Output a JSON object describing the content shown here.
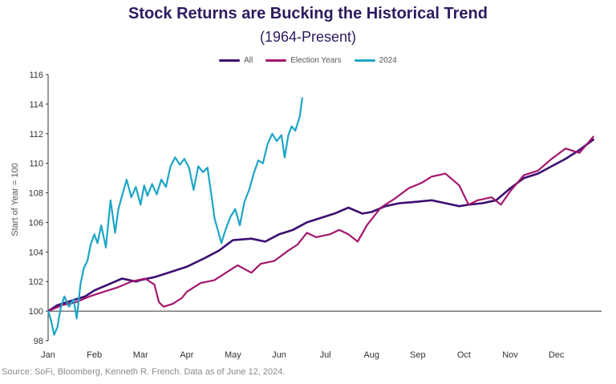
{
  "header": {
    "title": "Stock Returns are Bucking the Historical Trend",
    "subtitle": "(1964-Present)"
  },
  "source": "Source: SoFi, Bloomberg, Kenneth R. French. Data as of June 12, 2024.",
  "colors": {
    "all": "#3b0f70",
    "election": "#a3166e",
    "y2024": "#1ea5c6",
    "axis": "#333333"
  },
  "chart_data": {
    "type": "line",
    "title": "Stock Returns are Bucking the Historical Trend",
    "subtitle": "(1964-Present)",
    "xlabel": "",
    "ylabel": "Start of Year = 100",
    "categories": [
      "Jan",
      "Feb",
      "Mar",
      "Apr",
      "May",
      "Jun",
      "Jul",
      "Aug",
      "Sep",
      "Oct",
      "Nov",
      "Dec"
    ],
    "ylim": [
      98,
      116
    ],
    "yticks": [
      98,
      100,
      102,
      104,
      106,
      108,
      110,
      112,
      114,
      116
    ],
    "grid": false,
    "legend": "top-center",
    "series": [
      {
        "name": "All",
        "color": "#3b0f70",
        "x": [
          0,
          0.2,
          0.5,
          0.8,
          1.0,
          1.3,
          1.6,
          1.9,
          2.0,
          2.3,
          2.6,
          3.0,
          3.4,
          3.7,
          4.0,
          4.4,
          4.7,
          5.0,
          5.3,
          5.6,
          5.9,
          6.2,
          6.5,
          6.8,
          7.0,
          7.3,
          7.6,
          8.0,
          8.3,
          8.6,
          8.9,
          9.1,
          9.4,
          9.7,
          10.0,
          10.3,
          10.6,
          10.9,
          11.2,
          11.5,
          11.8
        ],
        "y": [
          100,
          100.4,
          100.7,
          101.0,
          101.4,
          101.8,
          102.2,
          102.0,
          102.1,
          102.3,
          102.6,
          103.0,
          103.6,
          104.1,
          104.8,
          104.9,
          104.7,
          105.2,
          105.5,
          106.0,
          106.3,
          106.6,
          107.0,
          106.6,
          106.7,
          107.1,
          107.3,
          107.4,
          107.5,
          107.3,
          107.1,
          107.2,
          107.3,
          107.5,
          108.3,
          109.0,
          109.3,
          109.8,
          110.3,
          110.9,
          111.6
        ]
      },
      {
        "name": "Election Years",
        "color": "#a3166e",
        "x": [
          0,
          0.3,
          0.6,
          0.9,
          1.2,
          1.5,
          1.8,
          2.1,
          2.3,
          2.4,
          2.5,
          2.7,
          2.9,
          3.0,
          3.3,
          3.6,
          3.9,
          4.1,
          4.4,
          4.6,
          4.9,
          5.2,
          5.4,
          5.6,
          5.8,
          6.1,
          6.3,
          6.5,
          6.7,
          6.9,
          7.2,
          7.5,
          7.8,
          8.1,
          8.3,
          8.6,
          8.9,
          9.1,
          9.3,
          9.6,
          9.8,
          10.0,
          10.3,
          10.6,
          10.9,
          11.2,
          11.5,
          11.8
        ],
        "y": [
          100,
          100.4,
          100.6,
          101.0,
          101.3,
          101.6,
          102.0,
          102.2,
          101.8,
          100.6,
          100.3,
          100.5,
          100.9,
          101.3,
          101.9,
          102.1,
          102.7,
          103.1,
          102.6,
          103.2,
          103.4,
          104.1,
          104.5,
          105.3,
          105.0,
          105.2,
          105.5,
          105.2,
          104.7,
          105.8,
          107.0,
          107.6,
          108.3,
          108.7,
          109.1,
          109.3,
          108.5,
          107.2,
          107.5,
          107.7,
          107.2,
          108.1,
          109.2,
          109.5,
          110.3,
          111.0,
          110.7,
          111.8
        ]
      },
      {
        "name": "2024",
        "color": "#1ea5c6",
        "x": [
          0,
          0.06,
          0.13,
          0.2,
          0.27,
          0.35,
          0.45,
          0.55,
          0.62,
          0.7,
          0.77,
          0.85,
          0.92,
          1.0,
          1.07,
          1.15,
          1.25,
          1.35,
          1.45,
          1.52,
          1.6,
          1.7,
          1.8,
          1.9,
          2.0,
          2.08,
          2.15,
          2.25,
          2.35,
          2.45,
          2.55,
          2.65,
          2.75,
          2.85,
          2.95,
          3.05,
          3.15,
          3.25,
          3.35,
          3.45,
          3.55,
          3.6,
          3.68,
          3.75,
          3.85,
          3.95,
          4.05,
          4.15,
          4.25,
          4.35,
          4.45,
          4.55,
          4.65,
          4.75,
          4.85,
          4.95,
          5.05,
          5.12,
          5.2,
          5.27,
          5.35,
          5.45,
          5.5
        ],
        "y": [
          100,
          99.4,
          98.4,
          98.9,
          100.2,
          101.0,
          100.3,
          100.8,
          99.5,
          101.8,
          102.9,
          103.4,
          104.5,
          105.2,
          104.6,
          105.8,
          104.3,
          107.5,
          105.3,
          106.9,
          107.8,
          108.9,
          107.7,
          108.4,
          107.2,
          108.5,
          107.8,
          108.6,
          107.9,
          108.9,
          108.4,
          109.8,
          110.4,
          109.9,
          110.3,
          109.7,
          108.2,
          109.8,
          109.4,
          109.7,
          107.5,
          106.3,
          105.4,
          104.6,
          105.6,
          106.4,
          106.9,
          105.8,
          107.4,
          108.2,
          109.3,
          110.2,
          110.0,
          111.3,
          112.0,
          111.5,
          111.9,
          110.4,
          111.9,
          112.5,
          112.2,
          113.2,
          114.4
        ]
      }
    ]
  }
}
